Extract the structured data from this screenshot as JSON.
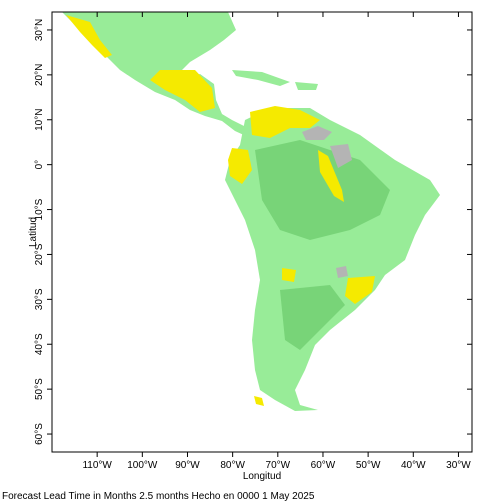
{
  "chart_data": {
    "type": "map",
    "caption": "Forecast Lead Time in Months 2.5 months Hecho en 0000 1 May 2025",
    "xlabel": "Longitud",
    "ylabel": "Latitud",
    "xlim": [
      -120,
      -27
    ],
    "ylim": [
      -64,
      34
    ],
    "xticks": [
      {
        "value": -110,
        "label": "110°W"
      },
      {
        "value": -100,
        "label": "100°W"
      },
      {
        "value": -90,
        "label": "90°W"
      },
      {
        "value": -80,
        "label": "80°W"
      },
      {
        "value": -70,
        "label": "70°W"
      },
      {
        "value": -60,
        "label": "60°W"
      },
      {
        "value": -50,
        "label": "50°W"
      },
      {
        "value": -40,
        "label": "40°W"
      },
      {
        "value": -30,
        "label": "30°W"
      }
    ],
    "yticks": [
      {
        "value": 30,
        "label": "30°N"
      },
      {
        "value": 20,
        "label": "20°N"
      },
      {
        "value": 10,
        "label": "10°N"
      },
      {
        "value": 0,
        "label": "0°"
      },
      {
        "value": -10,
        "label": "10°S"
      },
      {
        "value": -20,
        "label": "20°S"
      },
      {
        "value": -30,
        "label": "30°S"
      },
      {
        "value": -40,
        "label": "40°S"
      },
      {
        "value": -50,
        "label": "50°S"
      },
      {
        "value": -60,
        "label": "60°S"
      }
    ]
  }
}
